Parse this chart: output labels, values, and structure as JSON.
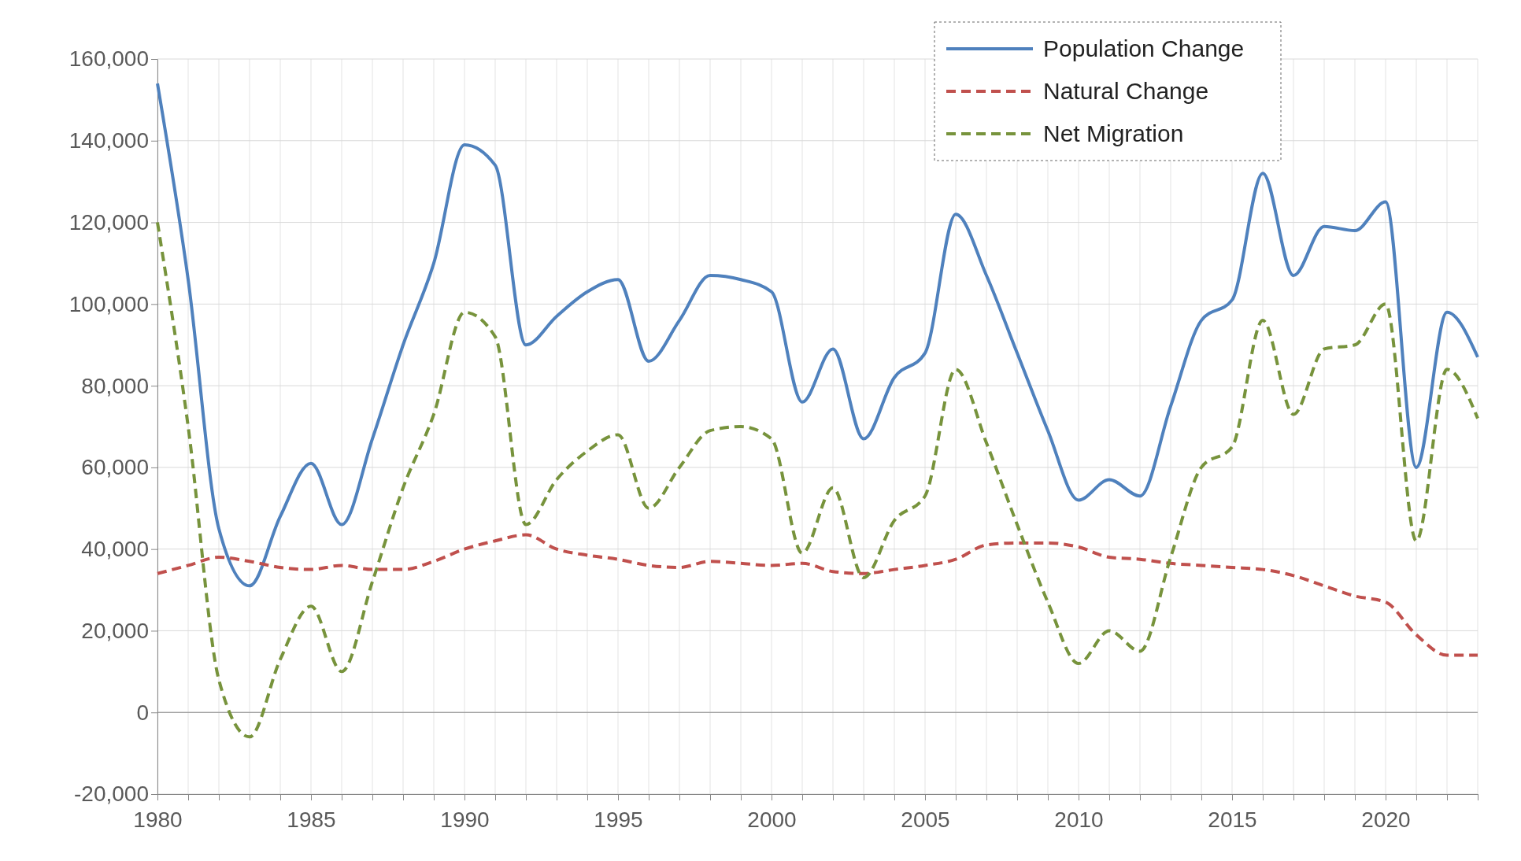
{
  "chart_data": {
    "type": "line",
    "x": [
      1980,
      1981,
      1982,
      1983,
      1984,
      1985,
      1986,
      1987,
      1988,
      1989,
      1990,
      1991,
      1992,
      1993,
      1994,
      1995,
      1996,
      1997,
      1998,
      1999,
      2000,
      2001,
      2002,
      2003,
      2004,
      2005,
      2006,
      2007,
      2008,
      2009,
      2010,
      2011,
      2012,
      2013,
      2014,
      2015,
      2016,
      2017,
      2018,
      2019,
      2020,
      2021,
      2022,
      2023
    ],
    "series": [
      {
        "name": "Population Change",
        "color": "#4f81bd",
        "line_style": "solid",
        "values": [
          154000,
          106000,
          45000,
          31000,
          48000,
          61000,
          46000,
          67000,
          90000,
          110000,
          139000,
          134000,
          90000,
          97000,
          103000,
          106000,
          86000,
          96000,
          107000,
          106000,
          103000,
          76000,
          89000,
          67000,
          82000,
          88000,
          122000,
          107000,
          88000,
          69000,
          52000,
          57000,
          53000,
          75000,
          96000,
          101000,
          132000,
          107000,
          119000,
          118000,
          125000,
          60000,
          98000,
          87000
        ]
      },
      {
        "name": "Natural Change",
        "color": "#c0504d",
        "line_style": "dashed",
        "values": [
          34000,
          36000,
          38000,
          37000,
          35500,
          35000,
          36000,
          35000,
          35000,
          37000,
          40000,
          42000,
          43500,
          40000,
          38500,
          37500,
          36000,
          35500,
          37000,
          36500,
          36000,
          36500,
          34500,
          34000,
          35000,
          36000,
          37500,
          41000,
          41500,
          41500,
          40500,
          38000,
          37500,
          36500,
          36000,
          35500,
          35000,
          33500,
          31000,
          28500,
          27000,
          19000,
          14000,
          14000
        ]
      },
      {
        "name": "Net Migration",
        "color": "#77933c",
        "line_style": "dashed",
        "values": [
          120000,
          70000,
          8000,
          -6000,
          13000,
          26000,
          10000,
          32000,
          55000,
          73000,
          98000,
          92000,
          46000,
          57000,
          64000,
          68000,
          50000,
          60000,
          69000,
          70000,
          67000,
          39000,
          55000,
          33000,
          47000,
          53000,
          84000,
          66000,
          46000,
          27000,
          12000,
          20000,
          15000,
          38000,
          60000,
          65000,
          96000,
          73000,
          89000,
          90000,
          100000,
          42000,
          84000,
          72000
        ]
      }
    ],
    "xlim": [
      1980,
      2023
    ],
    "xticks": [
      1980,
      {
        "value": 1981,
        "label": null
      },
      {
        "value": 1982,
        "label": null
      },
      {
        "value": 1983,
        "label": null
      },
      {
        "value": 1984,
        "label": null
      },
      1985,
      {
        "value": 1986,
        "label": null
      },
      {
        "value": 1987,
        "label": null
      },
      {
        "value": 1988,
        "label": null
      },
      {
        "value": 1989,
        "label": null
      },
      1990,
      {
        "value": 1991,
        "label": null
      },
      {
        "value": 1992,
        "label": null
      },
      {
        "value": 1993,
        "label": null
      },
      {
        "value": 1994,
        "label": null
      },
      1995,
      {
        "value": 1996,
        "label": null
      },
      {
        "value": 1997,
        "label": null
      },
      {
        "value": 1998,
        "label": null
      },
      {
        "value": 1999,
        "label": null
      },
      2000,
      {
        "value": 2001,
        "label": null
      },
      {
        "value": 2002,
        "label": null
      },
      {
        "value": 2003,
        "label": null
      },
      {
        "value": 2004,
        "label": null
      },
      2005,
      {
        "value": 2006,
        "label": null
      },
      {
        "value": 2007,
        "label": null
      },
      {
        "value": 2008,
        "label": null
      },
      {
        "value": 2009,
        "label": null
      },
      2010,
      {
        "value": 2011,
        "label": null
      },
      {
        "value": 2012,
        "label": null
      },
      {
        "value": 2013,
        "label": null
      },
      {
        "value": 2014,
        "label": null
      },
      2015,
      {
        "value": 2016,
        "label": null
      },
      {
        "value": 2017,
        "label": null
      },
      {
        "value": 2018,
        "label": null
      },
      {
        "value": 2019,
        "label": null
      },
      2020,
      {
        "value": 2021,
        "label": null
      },
      {
        "value": 2022,
        "label": null
      },
      {
        "value": 2023,
        "label": null
      }
    ],
    "ylim": [
      -20000,
      160000
    ],
    "yticks": [
      {
        "value": -20000,
        "label": "-20,000"
      },
      0,
      {
        "value": 20000,
        "label": "20,000"
      },
      {
        "value": 40000,
        "label": "40,000"
      },
      {
        "value": 60000,
        "label": "60,000"
      },
      {
        "value": 80000,
        "label": "80,000"
      },
      {
        "value": 100000,
        "label": "100,000"
      },
      {
        "value": 120000,
        "label": "120,000"
      },
      {
        "value": 140000,
        "label": "140,000"
      },
      {
        "value": 160000,
        "label": "160,000"
      }
    ],
    "grid": true,
    "legend": "top right",
    "marker": "none"
  }
}
